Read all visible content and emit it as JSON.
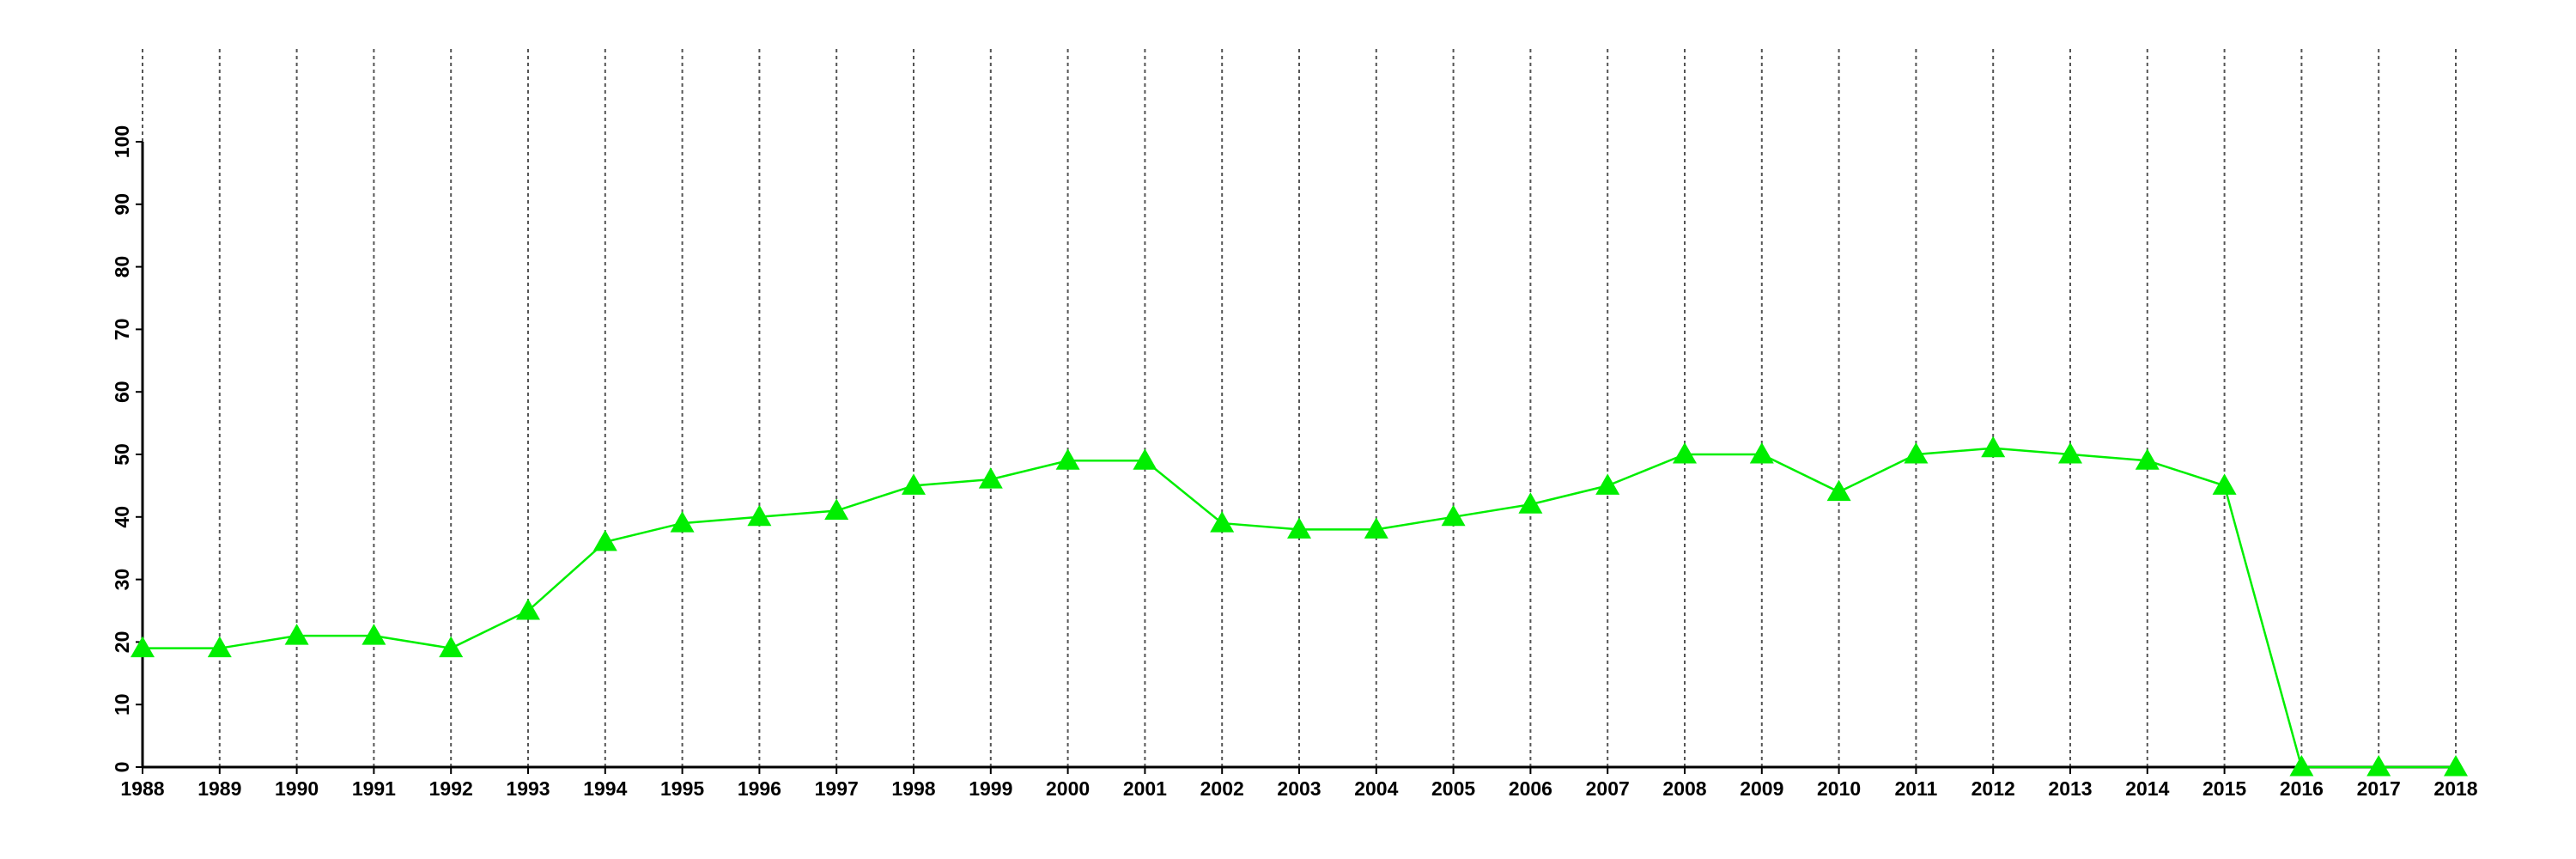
{
  "chart_data": {
    "type": "line",
    "x": [
      1988,
      1989,
      1990,
      1991,
      1992,
      1993,
      1994,
      1995,
      1996,
      1997,
      1998,
      1999,
      2000,
      2001,
      2002,
      2003,
      2004,
      2005,
      2006,
      2007,
      2008,
      2009,
      2010,
      2011,
      2012,
      2013,
      2014,
      2015,
      2016,
      2017,
      2018
    ],
    "series": [
      {
        "color": "#00ee00",
        "values": [
          19,
          19,
          21,
          21,
          19,
          25,
          36,
          39,
          40,
          41,
          45,
          46,
          49,
          49,
          39,
          38,
          38,
          40,
          42,
          45,
          50,
          50,
          44,
          50,
          51,
          50,
          49,
          45,
          0,
          0,
          0
        ]
      }
    ],
    "xlim": [
      1988,
      2018
    ],
    "xticks": [
      1988,
      1989,
      1990,
      1991,
      1992,
      1993,
      1994,
      1995,
      1996,
      1997,
      1998,
      1999,
      2000,
      2001,
      2002,
      2003,
      2004,
      2005,
      2006,
      2007,
      2008,
      2009,
      2010,
      2011,
      2012,
      2013,
      2014,
      2015,
      2016,
      2017,
      2018
    ],
    "ylim": [
      0,
      100
    ],
    "yticks": [
      0,
      10,
      20,
      30,
      40,
      50,
      60,
      70,
      80,
      90,
      100
    ],
    "grid": "x",
    "marker": "triangle"
  }
}
